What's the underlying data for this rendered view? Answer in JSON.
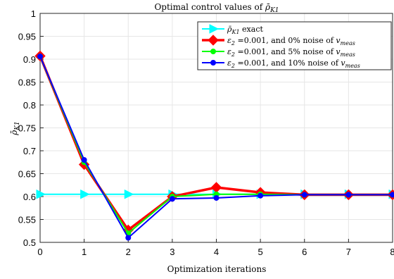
{
  "chart_data": {
    "type": "line",
    "title": "Optimal control values of ρ̄K1",
    "title_parts": {
      "prefix": "Optimal control values of ",
      "symbol": "ρ̄",
      "sub": "K1"
    },
    "xlabel": "Optimization iterations",
    "ylabel": "ρ̄K1",
    "ylabel_parts": {
      "symbol": "ρ̄",
      "sub": "K1"
    },
    "xlim": [
      0,
      8
    ],
    "ylim": [
      0.5,
      1
    ],
    "xticks": [
      "0",
      "1",
      "2",
      "3",
      "4",
      "5",
      "6",
      "7",
      "8"
    ],
    "yticks": [
      "0.5",
      "0.55",
      "0.6",
      "0.65",
      "0.7",
      "0.75",
      "0.8",
      "0.85",
      "0.9",
      "0.95",
      "1"
    ],
    "grid": true,
    "legend_position": "top-right",
    "x": [
      0,
      1,
      2,
      3,
      4,
      5,
      6,
      7,
      8
    ],
    "series": [
      {
        "name": "ρ̄K1 exact",
        "legend_parts": {
          "symbol": "ρ̄",
          "sub": "K1",
          "rest": " exact"
        },
        "color": "#00ffff",
        "marker": "triangle-right",
        "values": [
          0.605,
          0.605,
          0.605,
          0.605,
          0.605,
          0.605,
          0.605,
          0.605,
          0.605
        ]
      },
      {
        "name": "ε2 =0.001, and 0% noise of vmeas",
        "legend_parts": {
          "symbol": "ε",
          "sub": "2",
          "rest": " =0.001, and 0% noise of ",
          "tail": "v",
          "tail_sub": "meas"
        },
        "color": "#ff0000",
        "marker": "diamond",
        "values": [
          0.907,
          0.67,
          0.527,
          0.6,
          0.62,
          0.609,
          0.604,
          0.604,
          0.604
        ]
      },
      {
        "name": "ε2 =0.001, and 5% noise of vmeas",
        "legend_parts": {
          "symbol": "ε",
          "sub": "2",
          "rest": " =0.001, and 5% noise of ",
          "tail": "v",
          "tail_sub": "meas"
        },
        "color": "#00ff00",
        "marker": "dot",
        "values": [
          0.906,
          0.675,
          0.52,
          0.6,
          0.605,
          0.605,
          0.604,
          0.604,
          0.604
        ]
      },
      {
        "name": "ε2 =0.001, and 10% noise of vmeas",
        "legend_parts": {
          "symbol": "ε",
          "sub": "2",
          "rest": " =0.001, and 10% noise of ",
          "tail": "v",
          "tail_sub": "meas"
        },
        "color": "#0000ff",
        "marker": "dot",
        "values": [
          0.906,
          0.68,
          0.51,
          0.595,
          0.597,
          0.602,
          0.604,
          0.604,
          0.604
        ]
      }
    ]
  }
}
